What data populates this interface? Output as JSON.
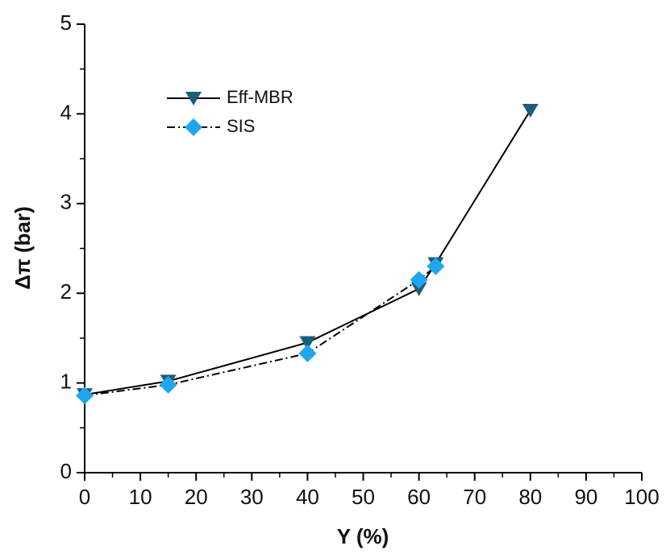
{
  "chart_data": {
    "type": "line",
    "x_label": "Y (%)",
    "y_label": "Δπ (bar)",
    "xlim": [
      0,
      100
    ],
    "xticks": [
      0,
      10,
      20,
      30,
      40,
      50,
      60,
      70,
      80,
      90,
      100
    ],
    "ylim": [
      0,
      5
    ],
    "yticks": [
      0,
      1,
      2,
      3,
      4,
      5
    ],
    "minor_ticks": true,
    "legend": "upper left",
    "series": [
      {
        "name": "Eff-MBR",
        "color": "#1b5e78",
        "line_color": "#000000",
        "line_style": "solid",
        "marker": "triangle-down",
        "x": [
          0,
          15,
          40,
          60,
          63,
          80
        ],
        "values": [
          0.87,
          1.02,
          1.45,
          2.05,
          2.33,
          4.04
        ]
      },
      {
        "name": "SIS",
        "color": "#1fa6ef",
        "line_color": "#000000",
        "line_style": "dashdot",
        "marker": "diamond",
        "x": [
          0,
          15,
          40,
          60,
          63
        ],
        "values": [
          0.86,
          0.98,
          1.33,
          2.15,
          2.3
        ]
      }
    ]
  }
}
